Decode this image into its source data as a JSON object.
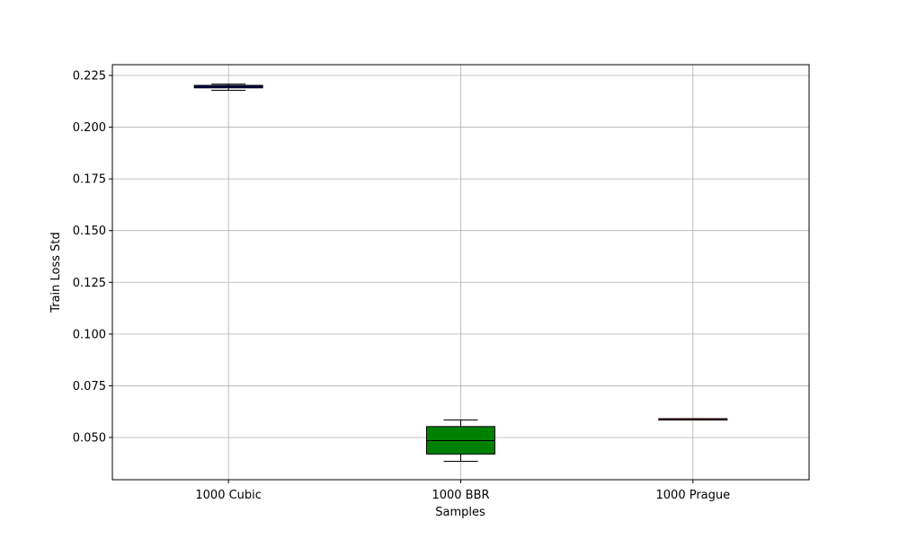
{
  "chart_data": {
    "type": "box",
    "title": "",
    "xlabel": "Samples",
    "ylabel": "Train Loss Std",
    "ylim": [
      0.0296,
      0.2302
    ],
    "yticks": [
      0.05,
      0.075,
      0.1,
      0.125,
      0.15,
      0.175,
      0.2,
      0.225
    ],
    "ytick_labels": [
      "0.050",
      "0.075",
      "0.100",
      "0.125",
      "0.150",
      "0.175",
      "0.200",
      "0.225"
    ],
    "grid": true,
    "categories": [
      "1000 Cubic",
      "1000 BBR",
      "1000 Prague"
    ],
    "boxes": [
      {
        "category": "1000 Cubic",
        "whisker_low": 0.2178,
        "q1": 0.219,
        "median": 0.2196,
        "q3": 0.2202,
        "whisker_high": 0.2208,
        "color": "#0000cc"
      },
      {
        "category": "1000 BBR",
        "whisker_low": 0.0385,
        "q1": 0.042,
        "median": 0.0485,
        "q3": 0.0553,
        "whisker_high": 0.0585,
        "color": "#008000"
      },
      {
        "category": "1000 Prague",
        "whisker_low": 0.0589,
        "q1": 0.0589,
        "median": 0.059,
        "q3": 0.0591,
        "whisker_high": 0.0591,
        "color": "#ff0000"
      }
    ]
  }
}
